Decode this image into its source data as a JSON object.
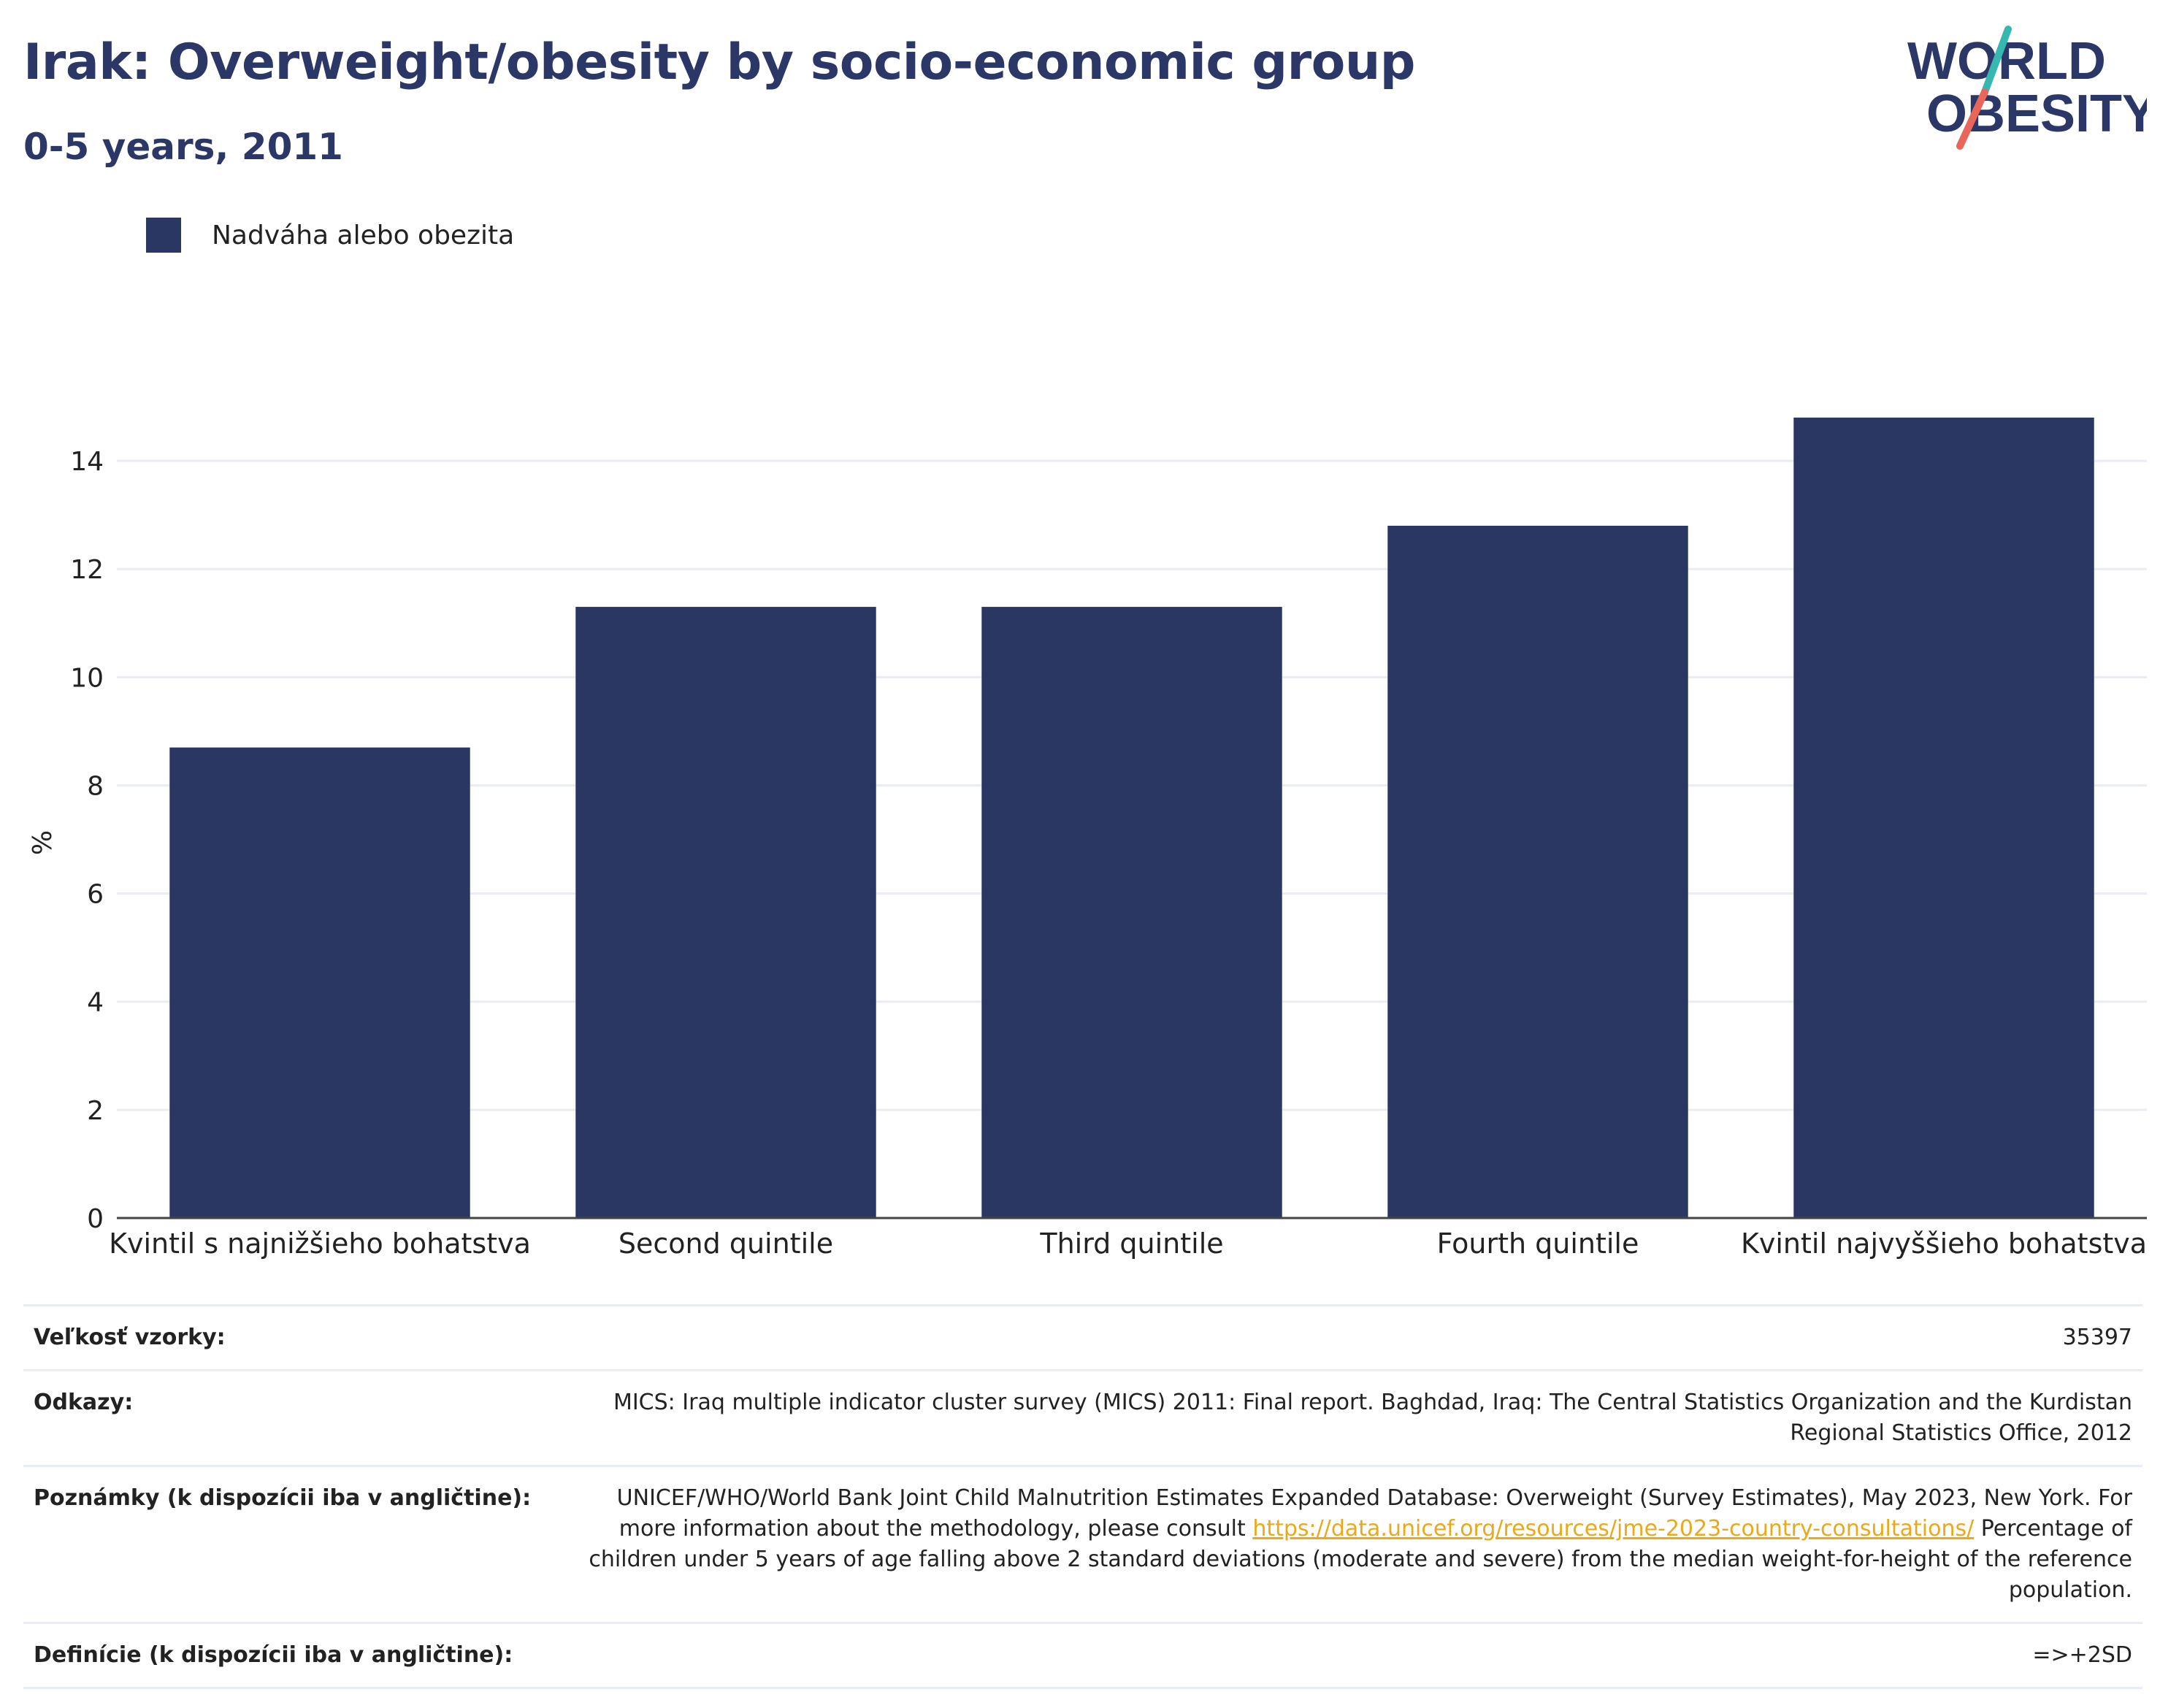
{
  "header": {
    "title": "Irak: Overweight/obesity by socio-economic group",
    "subtitle": "0-5 years, 2011"
  },
  "logo": {
    "line1": "WORLD",
    "line2": "OBESITY",
    "accent_colors": [
      "#34b8b0",
      "#e8665a"
    ]
  },
  "legend": {
    "items": [
      {
        "label": "Nadváha alebo obezita",
        "color": "#2b3763"
      }
    ],
    "placement": "top-left"
  },
  "chart_data": {
    "type": "bar",
    "categories": [
      "Kvintil s najnižšieho bohatstva",
      "Second quintile",
      "Third quintile",
      "Fourth quintile",
      "Kvintil najvyššieho bohatstva"
    ],
    "series": [
      {
        "name": "Nadváha alebo obezita",
        "values": [
          8.7,
          11.3,
          11.3,
          12.8,
          14.8
        ],
        "color": "#2b3763"
      }
    ],
    "ylabel": "%",
    "ylim": [
      0,
      15.5
    ],
    "yticks": [
      0,
      2,
      4,
      6,
      8,
      10,
      12,
      14
    ],
    "grid": true
  },
  "info": {
    "sample_size": {
      "label": "Veľkosť vzorky:",
      "value": "35397"
    },
    "references": {
      "label": "Odkazy:",
      "value": "MICS: Iraq multiple indicator cluster survey (MICS) 2011: Final report. Baghdad, Iraq: The Central Statistics Organization and the Kurdistan Regional Statistics Office, 2012"
    },
    "notes": {
      "label": "Poznámky (k dispozícii iba v angličtine):",
      "text_before": "UNICEF/WHO/World Bank Joint Child Malnutrition Estimates Expanded Database: Overweight (Survey Estimates), May 2023, New York. For more information about the methodology, please consult ",
      "link": "https://data.unicef.org/resources/jme-2023-country-consultations/",
      "text_after": " Percentage of children under 5 years of age falling above 2 standard deviations (moderate and severe) from the median weight-for-height of the reference population."
    },
    "definitions": {
      "label": "Definície (k dispozícii iba v angličtine):",
      "value": "=>+2SD"
    }
  }
}
